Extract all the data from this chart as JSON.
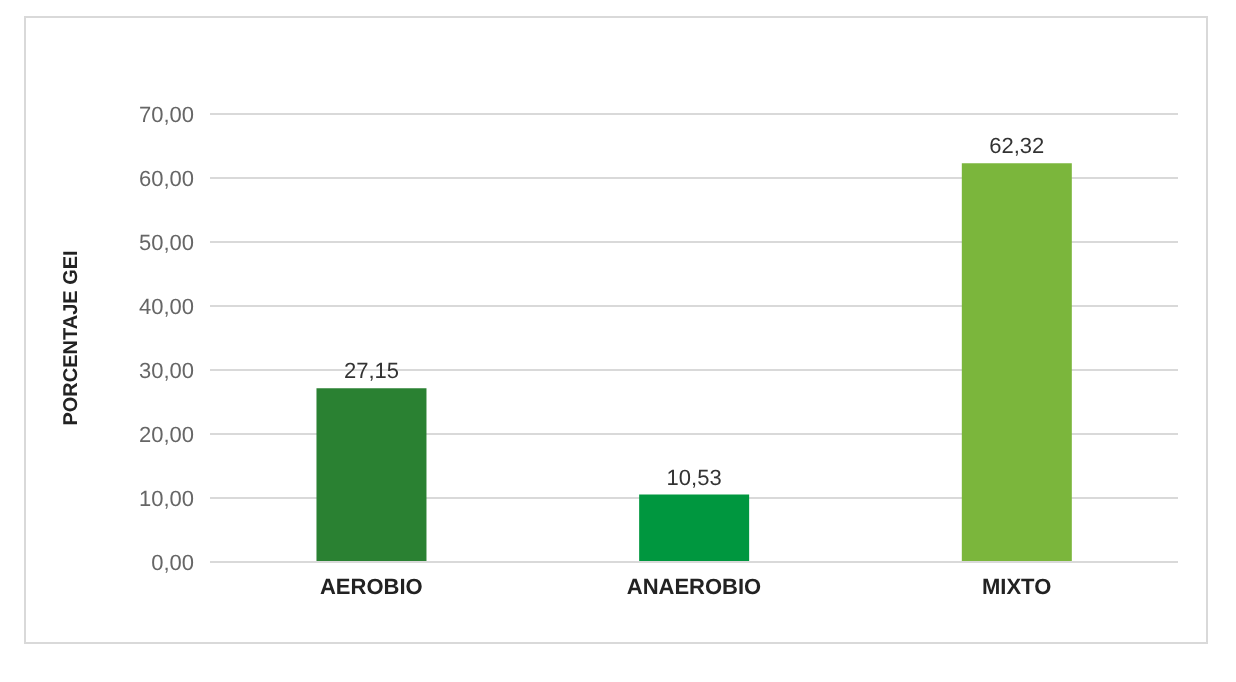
{
  "chart_data": {
    "type": "bar",
    "ylabel": "PORCENTAJE GEI",
    "categories": [
      "AEROBIO",
      "ANAEROBIO",
      "MIXTO"
    ],
    "values": [
      27.15,
      10.53,
      62.32
    ],
    "colors": [
      "#2a8132",
      "#00973f",
      "#7bb63c"
    ],
    "value_labels": [
      "27,15",
      "10,53",
      "62,32"
    ],
    "ylim": [
      0,
      70
    ],
    "yticks": [
      {
        "value": 0,
        "label": "0,00"
      },
      {
        "value": 10,
        "label": "10,00"
      },
      {
        "value": 20,
        "label": "20,00"
      },
      {
        "value": 30,
        "label": "30,00"
      },
      {
        "value": 40,
        "label": "40,00"
      },
      {
        "value": 50,
        "label": "50,00"
      },
      {
        "value": 60,
        "label": "60,00"
      },
      {
        "value": 70,
        "label": "70,00"
      }
    ],
    "grid": "y",
    "legend": false
  }
}
